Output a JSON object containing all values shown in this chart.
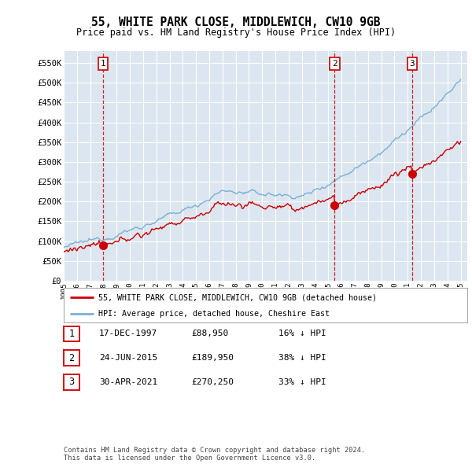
{
  "title": "55, WHITE PARK CLOSE, MIDDLEWICH, CW10 9GB",
  "subtitle": "Price paid vs. HM Land Registry's House Price Index (HPI)",
  "red_label": "55, WHITE PARK CLOSE, MIDDLEWICH, CW10 9GB (detached house)",
  "blue_label": "HPI: Average price, detached house, Cheshire East",
  "footer": "Contains HM Land Registry data © Crown copyright and database right 2024.\nThis data is licensed under the Open Government Licence v3.0.",
  "transactions": [
    {
      "num": 1,
      "date": "17-DEC-1997",
      "price": "£88,950",
      "pct": "16% ↓ HPI",
      "x_year": 1997.96,
      "y_val": 88950
    },
    {
      "num": 2,
      "date": "24-JUN-2015",
      "price": "£189,950",
      "pct": "38% ↓ HPI",
      "x_year": 2015.48,
      "y_val": 189950
    },
    {
      "num": 3,
      "date": "30-APR-2021",
      "price": "£270,250",
      "pct": "33% ↓ HPI",
      "x_year": 2021.33,
      "y_val": 270250
    }
  ],
  "yticks": [
    0,
    50000,
    100000,
    150000,
    200000,
    250000,
    300000,
    350000,
    400000,
    450000,
    500000,
    550000
  ],
  "ylabels": [
    "£0",
    "£50K",
    "£100K",
    "£150K",
    "£200K",
    "£250K",
    "£300K",
    "£350K",
    "£400K",
    "£450K",
    "£500K",
    "£550K"
  ],
  "xlim": [
    1995.0,
    2025.5
  ],
  "ylim": [
    0,
    580000
  ],
  "background_color": "#ffffff",
  "plot_bg_color": "#dce6f0",
  "grid_color": "#ffffff",
  "red_color": "#cc0000",
  "blue_color": "#7bafd4"
}
